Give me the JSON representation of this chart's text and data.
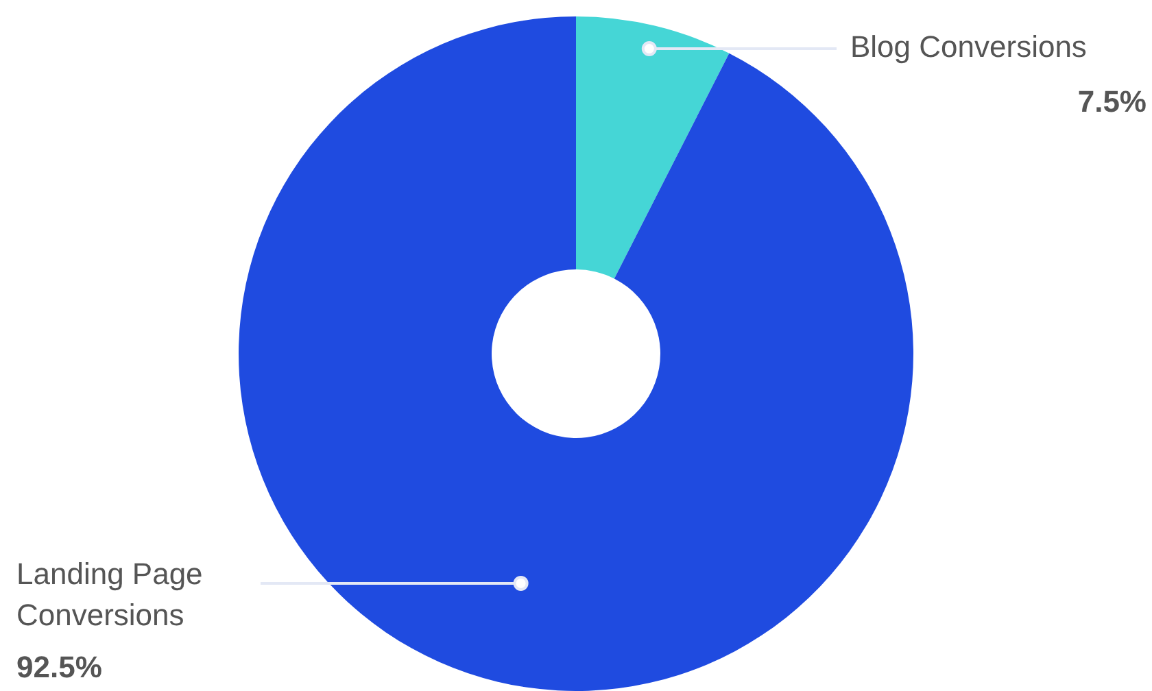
{
  "chart_data": {
    "type": "donut",
    "categories": [
      "Blog Conversions",
      "Landing Page Conversions"
    ],
    "values": [
      7.5,
      92.5
    ],
    "colors": [
      "#45d6d6",
      "#1f4be0"
    ],
    "value_labels": [
      "7.5%",
      "92.5%"
    ],
    "legend": false
  }
}
